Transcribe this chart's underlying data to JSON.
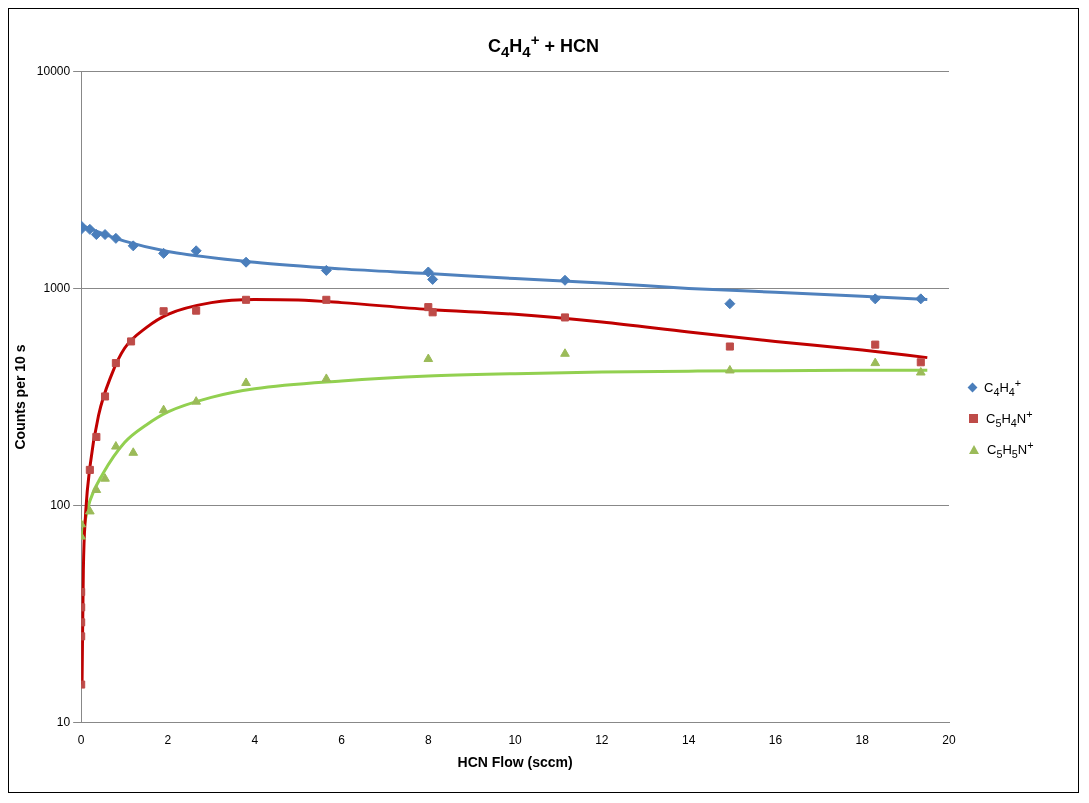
{
  "chart_data": {
    "type": "scatter",
    "title": "C$_{4}$H$_{4}$$^{+}$ + HCN",
    "xlabel": "HCN Flow (sccm)",
    "ylabel": "Counts per 10 s",
    "xlim": [
      0,
      20
    ],
    "xticks": [
      0,
      2,
      4,
      6,
      8,
      10,
      12,
      14,
      16,
      18,
      20
    ],
    "ylim": [
      10,
      10000
    ],
    "yticks": [
      10,
      100,
      1000,
      10000
    ],
    "log": "y",
    "grid": "y",
    "legend": "right",
    "series": [
      {
        "name": "C$_{4}$H$_{4}$$^{+}$",
        "color": "#4a7ebb",
        "marker": "diamond",
        "x": [
          0,
          0,
          0.2,
          0.35,
          0.55,
          0.8,
          1.2,
          1.9,
          2.65,
          3.8,
          5.65,
          8.0,
          8.1,
          11.15,
          14.95,
          18.3,
          19.35
        ],
        "values": [
          1870,
          1940,
          1870,
          1770,
          1770,
          1700,
          1570,
          1450,
          1490,
          1320,
          1210,
          1190,
          1100,
          1090,
          850,
          895,
          895
        ]
      },
      {
        "name": "C$_{5}$H$_{4}$N$^{+}$",
        "color": "#be4b48",
        "marker": "square",
        "x": [
          0,
          0,
          0,
          0,
          0,
          0.2,
          0.35,
          0.55,
          0.8,
          1.15,
          1.9,
          2.65,
          3.8,
          5.65,
          8.0,
          8.1,
          11.15,
          14.95,
          18.3,
          19.35
        ],
        "values": [
          15,
          25,
          29,
          34,
          40,
          146,
          207,
          318,
          453,
          570,
          785,
          790,
          886,
          886,
          820,
          776,
          735,
          540,
          551,
          457
        ]
      },
      {
        "name": "C$_{5}$H$_{5}$N$^{+}$",
        "color": "#9bbb59",
        "marker": "triangle",
        "x": [
          0,
          0,
          0.2,
          0.35,
          0.55,
          0.8,
          1.2,
          1.9,
          2.65,
          3.8,
          5.65,
          8.0,
          11.15,
          14.95,
          18.3,
          19.35
        ],
        "values": [
          82,
          72,
          94,
          118,
          133,
          187,
          175,
          275,
          301,
          367,
          383,
          473,
          500,
          419,
          453,
          410
        ]
      },
      {
        "type": "line",
        "color": "#4f81bd",
        "marker": "none",
        "x": [
          0,
          1,
          2,
          4,
          6,
          8,
          10,
          12,
          14,
          16,
          18,
          19.5
        ],
        "values": [
          1950,
          1650,
          1480,
          1320,
          1230,
          1170,
          1110,
          1060,
          1000,
          960,
          920,
          890
        ]
      },
      {
        "type": "line",
        "color": "#c00000",
        "marker": "none",
        "x": [
          0.02,
          0.05,
          0.1,
          0.2,
          0.4,
          0.7,
          1,
          1.5,
          2,
          3,
          4,
          5,
          6,
          8,
          10,
          12,
          14,
          16,
          18,
          19.5
        ],
        "values": [
          15,
          50,
          90,
          150,
          260,
          400,
          530,
          660,
          760,
          860,
          890,
          885,
          860,
          800,
          760,
          700,
          630,
          570,
          520,
          480
        ]
      },
      {
        "type": "line",
        "color": "#92d050",
        "marker": "none",
        "x": [
          0,
          0.2,
          0.5,
          1,
          1.5,
          2,
          3,
          4,
          6,
          8,
          10,
          12,
          14,
          16,
          18,
          19.5
        ],
        "values": [
          70,
          105,
          140,
          195,
          235,
          270,
          315,
          345,
          375,
          395,
          405,
          412,
          416,
          418,
          420,
          420
        ]
      }
    ]
  }
}
